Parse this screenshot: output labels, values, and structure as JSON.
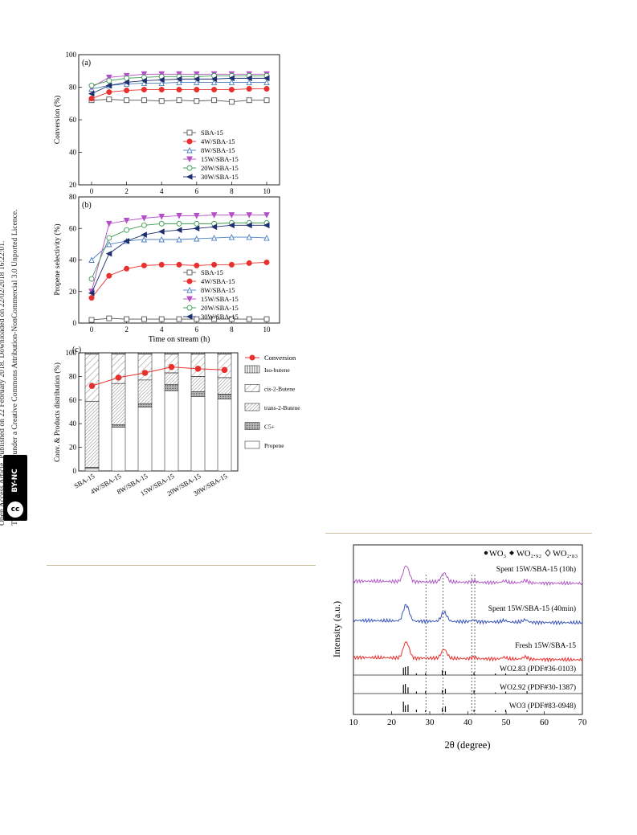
{
  "side_notice": {
    "line1": "Open Access Article. Published on 22 February 2018. Downloaded on 22/02/2018 16:22:01.",
    "line2": "This article is licensed under a Creative Commons Attribution-NonCommercial 3.0 Unported Licence."
  },
  "license_badge": {
    "cc": "cc",
    "by": "BY-NC"
  },
  "figure_left": {
    "panel_a": {
      "label": "(a)",
      "chart_data": {
        "type": "line",
        "ylabel": "Conversion (%)",
        "xlim": [
          0,
          10
        ],
        "ylim": [
          20,
          100
        ],
        "xticks": [
          "0",
          "2",
          "4",
          "6",
          "8",
          "10"
        ],
        "yticks": [
          "20",
          "40",
          "60",
          "80",
          "100"
        ],
        "x": [
          0,
          1,
          2,
          3,
          4,
          5,
          6,
          7,
          8,
          9,
          10
        ],
        "series": [
          {
            "name": "SBA-15",
            "color": "#555555",
            "marker": "square",
            "values": [
              72,
              72.5,
              72,
              72,
              71.5,
              72,
              71.5,
              72,
              71,
              72,
              72
            ]
          },
          {
            "name": "4W/SBA-15",
            "color": "#e8302e",
            "marker": "circle",
            "values": [
              73,
              77,
              78,
              78.5,
              78.5,
              78.5,
              78.5,
              78.5,
              78.5,
              79,
              79
            ]
          },
          {
            "name": "8W/SBA-15",
            "color": "#4a7fc1",
            "marker": "triangle-up",
            "values": [
              79,
              81,
              82,
              82.5,
              82.5,
              83,
              83,
              83,
              83,
              83,
              83
            ]
          },
          {
            "name": "15W/SBA-15",
            "color": "#b44fc7",
            "marker": "triangle-down",
            "values": [
              80,
              86,
              87,
              88,
              88,
              88,
              88,
              88,
              88,
              88,
              88
            ]
          },
          {
            "name": "20W/SBA-15",
            "color": "#3c9b50",
            "marker": "circle-open",
            "values": [
              81,
              84,
              85.5,
              86,
              86.5,
              86.5,
              86.5,
              87,
              87,
              87,
              87
            ]
          },
          {
            "name": "30W/SBA-15",
            "color": "#1f2f6e",
            "marker": "triangle-left",
            "values": [
              76,
              81,
              83,
              84,
              84.5,
              85,
              85,
              85,
              85.5,
              85.5,
              85.5
            ]
          }
        ]
      }
    },
    "panel_b": {
      "label": "(b)",
      "chart_data": {
        "type": "line",
        "xlabel": "Time on stream (h)",
        "ylabel": "Propene selectivity (%)",
        "xlim": [
          0,
          10
        ],
        "ylim": [
          0,
          80
        ],
        "xticks": [
          "0",
          "2",
          "4",
          "6",
          "8",
          "10"
        ],
        "yticks": [
          "0",
          "20",
          "40",
          "60",
          "80"
        ],
        "x": [
          0,
          1,
          2,
          3,
          4,
          5,
          6,
          7,
          8,
          9,
          10
        ],
        "series": [
          {
            "name": "SBA-15",
            "color": "#555555",
            "marker": "square",
            "values": [
              2,
              3,
              2.5,
              2.5,
              2.5,
              2.5,
              2.5,
              2.5,
              2.5,
              2.5,
              2.5
            ]
          },
          {
            "name": "4W/SBA-15",
            "color": "#e8302e",
            "marker": "circle",
            "values": [
              16,
              30,
              34.5,
              36.5,
              37,
              37,
              36.5,
              37,
              37,
              38,
              38.5
            ]
          },
          {
            "name": "8W/SBA-15",
            "color": "#4a7fc1",
            "marker": "triangle-up",
            "values": [
              40,
              50,
              52,
              53,
              53,
              53,
              53.5,
              54,
              54.5,
              54.5,
              54
            ]
          },
          {
            "name": "15W/SBA-15",
            "color": "#b44fc7",
            "marker": "triangle-down",
            "values": [
              20,
              63,
              65,
              66.5,
              67.5,
              68,
              68,
              68.5,
              68.5,
              68.5,
              68.5
            ]
          },
          {
            "name": "20W/SBA-15",
            "color": "#3c9b50",
            "marker": "circle-open",
            "values": [
              28,
              54,
              59,
              62,
              63,
              63,
              63,
              63,
              63.5,
              63.5,
              63.5
            ]
          },
          {
            "name": "30W/SBA-15",
            "color": "#1f2f6e",
            "marker": "triangle-left",
            "values": [
              19,
              44,
              52,
              56,
              58,
              59,
              60,
              61,
              62,
              62,
              62
            ]
          }
        ]
      }
    },
    "panel_c": {
      "label": "(c)",
      "chart_data": {
        "type": "bar",
        "stacked": true,
        "ylabel": "Conv. & Products distribution (%)",
        "ylim": [
          0,
          100
        ],
        "yticks": [
          "0",
          "20",
          "40",
          "60",
          "80",
          "100"
        ],
        "categories": [
          "SBA-15",
          "4W/SBA-15",
          "8W/SBA-15",
          "15W/SBA-15",
          "20W/SBA-15",
          "30W/SBA-15"
        ],
        "series": [
          {
            "name": "Propene",
            "pattern": "blank",
            "values": [
              2,
              37,
              54,
              68,
              63,
              61
            ]
          },
          {
            "name": "C5+",
            "pattern": "dense",
            "values": [
              1,
              2,
              3,
              5,
              4,
              4
            ]
          },
          {
            "name": "trans-2-Butene",
            "pattern": "diag-dense",
            "values": [
              56,
              35,
              20,
              10,
              13,
              14
            ]
          },
          {
            "name": "cis-2-Butene",
            "pattern": "diag-sparse",
            "values": [
              40,
              25,
              22,
              16,
              19,
              20
            ]
          },
          {
            "name": "Iso-butene",
            "pattern": "vertical",
            "values": [
              1,
              1,
              1,
              1,
              1,
              1
            ]
          }
        ],
        "line_series": {
          "name": "Conversion",
          "color": "#e8302e",
          "values": [
            72,
            79,
            83,
            88,
            86.5,
            85.5
          ]
        },
        "legend": [
          "Conversion",
          "Iso-butene",
          "cis-2-Butene",
          "trans-2-Butene",
          "C5+",
          "Propene"
        ]
      }
    }
  },
  "figure_right": {
    "chart_data": {
      "type": "line",
      "xlabel": "2θ (degree)",
      "ylabel": "Intensity (a.u.)",
      "xlim": [
        10,
        70
      ],
      "xticks": [
        "10",
        "20",
        "30",
        "40",
        "50",
        "60",
        "70"
      ],
      "legend": {
        "wo3": "WO₃",
        "wo292": "WO₂.₉₂",
        "wo283": "WO₂.₈₃"
      },
      "traces": [
        {
          "name": "Spent 15W/SBA-15 (10h)",
          "color": "#b15bc4"
        },
        {
          "name": "Spent 15W/SBA-15 (40min)",
          "color": "#3a54b8"
        },
        {
          "name": "Fresh 15W/SBA-15",
          "color": "#e8302e"
        }
      ],
      "references": [
        "WO2.83 (PDF#36-0103)",
        "WO2.92 (PDF#30-1387)",
        "WO3 (PDF#83-0948)"
      ],
      "dashed_lines_at": [
        29,
        33.5,
        41,
        41.8
      ]
    }
  }
}
